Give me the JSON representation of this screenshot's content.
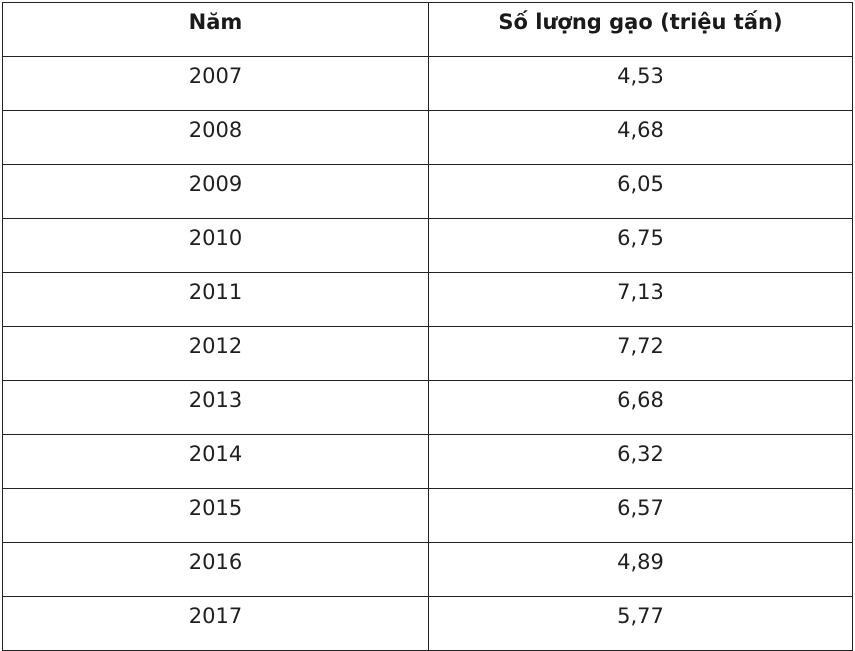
{
  "table": {
    "headers": [
      "Năm",
      "Số lượng gạo (triệu tấn)"
    ],
    "rows": [
      [
        "2007",
        "4,53"
      ],
      [
        "2008",
        "4,68"
      ],
      [
        "2009",
        "6,05"
      ],
      [
        "2010",
        "6,75"
      ],
      [
        "2011",
        "7,13"
      ],
      [
        "2012",
        "7,72"
      ],
      [
        "2013",
        "6,68"
      ],
      [
        "2014",
        "6,32"
      ],
      [
        "2015",
        "6,57"
      ],
      [
        "2016",
        "4,89"
      ],
      [
        "2017",
        "5,77"
      ]
    ]
  }
}
